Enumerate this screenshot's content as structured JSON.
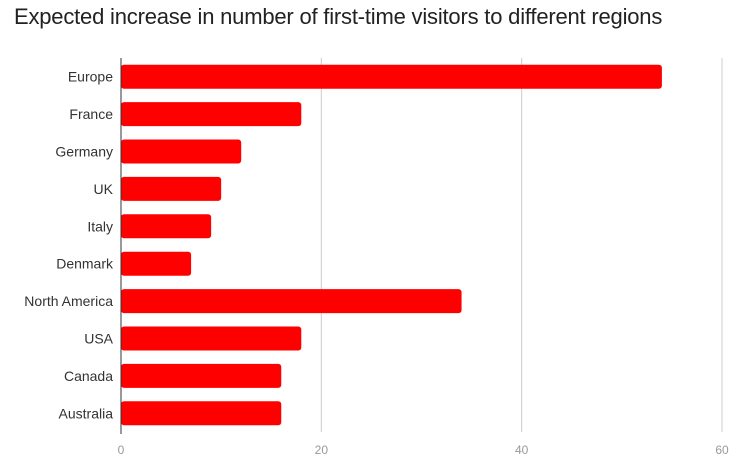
{
  "chart_data": {
    "type": "bar",
    "orientation": "horizontal",
    "title": "Expected increase in number of first-time visitors to different regions",
    "categories": [
      "Europe",
      "France",
      "Germany",
      "UK",
      "Italy",
      "Denmark",
      "North America",
      "USA",
      "Canada",
      "Australia"
    ],
    "values": [
      54,
      18,
      12,
      10,
      9,
      7,
      34,
      18,
      16,
      16
    ],
    "xlim": [
      0,
      60
    ],
    "xticks": [
      "0",
      "20",
      "40",
      "60"
    ],
    "xtick_values": [
      0,
      20,
      40,
      60
    ],
    "grid": true,
    "bar_color": "#ff0000",
    "grid_color": "#cccccc",
    "axis_color": "#333333"
  }
}
